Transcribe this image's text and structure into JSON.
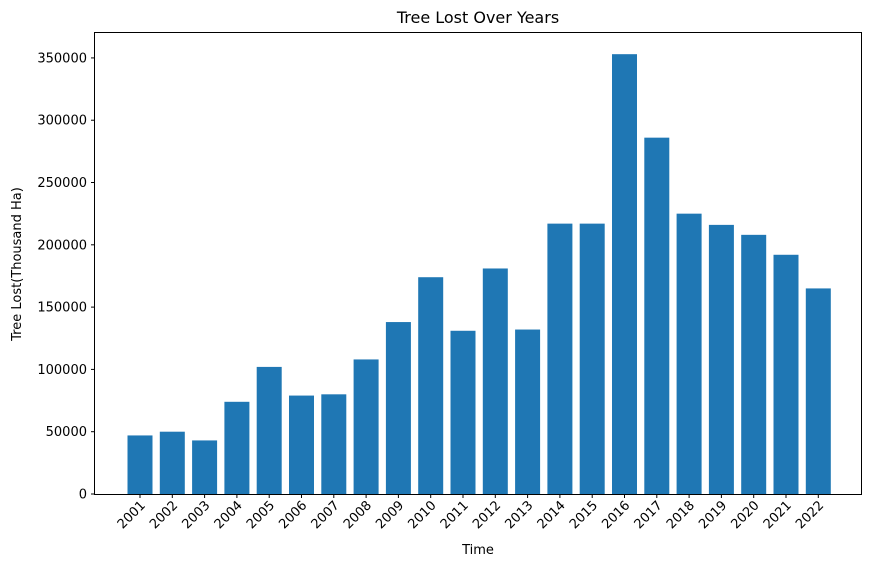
{
  "chart_data": {
    "type": "bar",
    "title": "Tree Lost Over Years",
    "xlabel": "Time",
    "ylabel": "Tree Lost(Thousand Ha)",
    "categories": [
      "2001",
      "2002",
      "2003",
      "2004",
      "2005",
      "2006",
      "2007",
      "2008",
      "2009",
      "2010",
      "2011",
      "2012",
      "2013",
      "2014",
      "2015",
      "2016",
      "2017",
      "2018",
      "2019",
      "2020",
      "2021",
      "2022"
    ],
    "values": [
      47000,
      50000,
      43000,
      74000,
      102000,
      79000,
      80000,
      108000,
      138000,
      174000,
      131000,
      181000,
      132000,
      217000,
      217000,
      353000,
      286000,
      225000,
      216000,
      208000,
      192000,
      165000
    ],
    "ylim": [
      0,
      370000
    ],
    "yticks": [
      0,
      50000,
      100000,
      150000,
      200000,
      250000,
      300000,
      350000
    ],
    "ytick_labels": [
      "0",
      "50000",
      "100000",
      "150000",
      "200000",
      "250000",
      "300000",
      "350000"
    ],
    "bar_color": "#1f77b4",
    "grid": false,
    "legend": "none"
  }
}
